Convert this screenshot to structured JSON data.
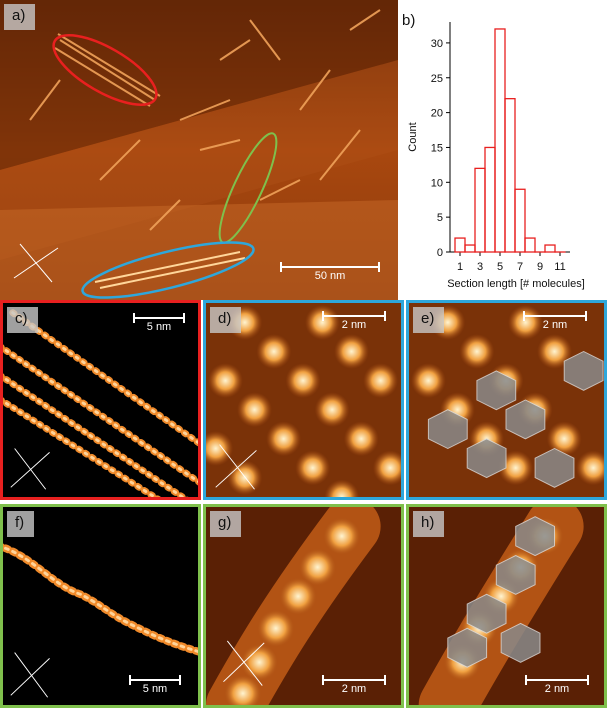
{
  "panels": {
    "a": {
      "label": "a)",
      "scale": "50 nm"
    },
    "b": {
      "label": "b)"
    },
    "c": {
      "label": "c)",
      "scale": "5 nm"
    },
    "d": {
      "label": "d)",
      "scale": "2 nm"
    },
    "e": {
      "label": "e)",
      "scale": "2 nm"
    },
    "f": {
      "label": "f)",
      "scale": "5 nm"
    },
    "g": {
      "label": "g)",
      "scale": "2 nm"
    },
    "h": {
      "label": "h)",
      "scale": "2 nm"
    }
  },
  "colors": {
    "red": "#e8201f",
    "blue": "#2ea7db",
    "green": "#7fc04c",
    "hist": "#e8201f"
  },
  "chart_data": {
    "type": "histogram",
    "xlabel": "Section length [# molecules]",
    "ylabel": "Count",
    "xticks": [
      "1",
      "3",
      "5",
      "7",
      "9",
      "11"
    ],
    "yticks": [
      "0",
      "5",
      "10",
      "15",
      "20",
      "25",
      "30"
    ],
    "xlim": [
      0,
      12
    ],
    "ylim": [
      0,
      33
    ],
    "bins": [
      1,
      2,
      3,
      4,
      5,
      6,
      7,
      8,
      9,
      10,
      11
    ],
    "values": [
      2,
      1,
      12,
      15,
      32,
      22,
      9,
      2,
      0,
      1,
      0
    ]
  }
}
